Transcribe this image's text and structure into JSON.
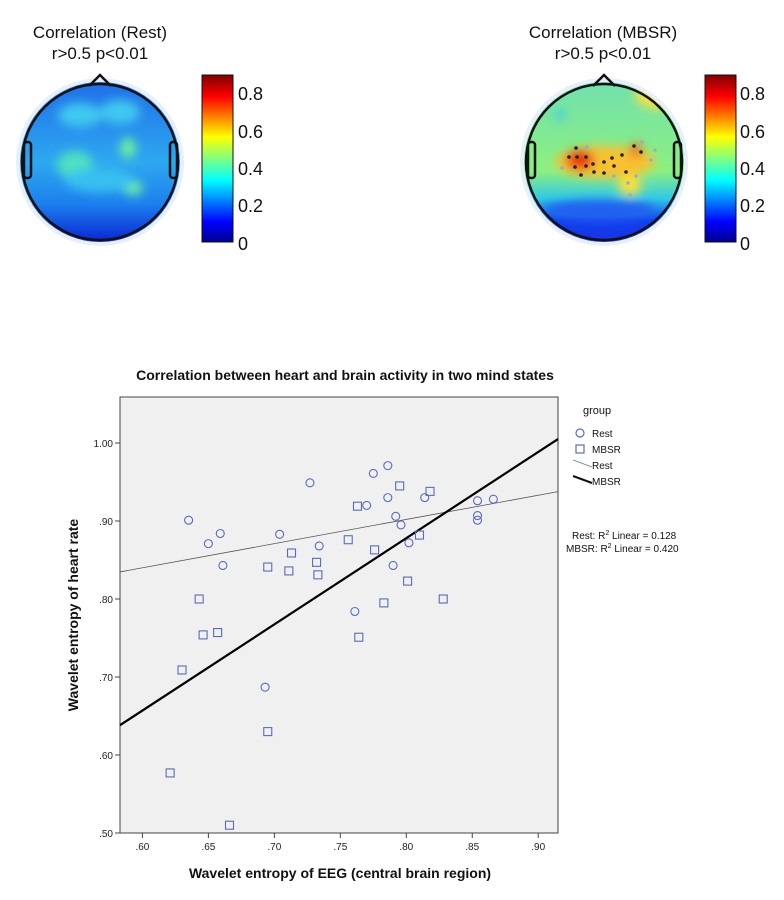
{
  "topomaps": [
    {
      "title": "Correlation (Rest)",
      "subtitle": "r>0.5  p<0.01",
      "colorbar_ticks": [
        "0.8",
        "0.6",
        "0.4",
        "0.2",
        "0"
      ],
      "colorbar_range": [
        0,
        0.9
      ]
    },
    {
      "title": "Correlation (MBSR)",
      "subtitle": "r>0.5  p<0.01",
      "colorbar_ticks": [
        "0.8",
        "0.6",
        "0.4",
        "0.2",
        "0"
      ],
      "colorbar_range": [
        0,
        0.9
      ]
    }
  ],
  "chart_data": {
    "type": "scatter",
    "title": "Correlation between heart and brain activity in two mind states",
    "xlabel": "Wavelet entropy of EEG (central brain region)",
    "ylabel": "Wavelet entropy of heart rate",
    "xlim": [
      0.583,
      0.915
    ],
    "ylim": [
      0.5,
      1.059
    ],
    "xticks": [
      ".60",
      ".65",
      ".70",
      ".75",
      ".80",
      ".85",
      ".90"
    ],
    "xtick_values": [
      0.6,
      0.65,
      0.7,
      0.75,
      0.8,
      0.85,
      0.9
    ],
    "yticks": [
      ".50",
      ".60",
      ".70",
      ".80",
      ".90",
      "1.00"
    ],
    "ytick_values": [
      0.5,
      0.6,
      0.7,
      0.8,
      0.9,
      1.0
    ],
    "grid": false,
    "legend_title": "group",
    "legend_position": "right",
    "series": [
      {
        "name": "Rest",
        "marker": "circle",
        "color": "#5b6bb8",
        "points": [
          [
            0.635,
            0.901
          ],
          [
            0.65,
            0.871
          ],
          [
            0.659,
            0.884
          ],
          [
            0.661,
            0.843
          ],
          [
            0.704,
            0.883
          ],
          [
            0.727,
            0.949
          ],
          [
            0.734,
            0.868
          ],
          [
            0.775,
            0.961
          ],
          [
            0.786,
            0.971
          ],
          [
            0.77,
            0.92
          ],
          [
            0.786,
            0.93
          ],
          [
            0.792,
            0.906
          ],
          [
            0.796,
            0.895
          ],
          [
            0.802,
            0.872
          ],
          [
            0.79,
            0.843
          ],
          [
            0.814,
            0.93
          ],
          [
            0.854,
            0.926
          ],
          [
            0.866,
            0.928
          ],
          [
            0.854,
            0.907
          ],
          [
            0.854,
            0.901
          ],
          [
            0.761,
            0.784
          ],
          [
            0.693,
            0.687
          ]
        ]
      },
      {
        "name": "MBSR",
        "marker": "square",
        "color": "#5b6bb8",
        "points": [
          [
            0.795,
            0.945
          ],
          [
            0.818,
            0.938
          ],
          [
            0.763,
            0.919
          ],
          [
            0.756,
            0.876
          ],
          [
            0.81,
            0.882
          ],
          [
            0.776,
            0.863
          ],
          [
            0.713,
            0.859
          ],
          [
            0.732,
            0.847
          ],
          [
            0.695,
            0.841
          ],
          [
            0.711,
            0.836
          ],
          [
            0.733,
            0.831
          ],
          [
            0.801,
            0.823
          ],
          [
            0.643,
            0.8
          ],
          [
            0.828,
            0.8
          ],
          [
            0.783,
            0.795
          ],
          [
            0.646,
            0.754
          ],
          [
            0.657,
            0.757
          ],
          [
            0.63,
            0.709
          ],
          [
            0.764,
            0.751
          ],
          [
            0.695,
            0.63
          ],
          [
            0.621,
            0.577
          ],
          [
            0.666,
            0.51
          ]
        ]
      }
    ],
    "fit_lines": [
      {
        "name": "Rest",
        "intercept": 0.654,
        "slope": 0.31,
        "r2_label": "Rest: R",
        "r2_suffix": " Linear = 0.128"
      },
      {
        "name": "MBSR",
        "intercept": -0.006,
        "slope": 1.105,
        "r2_label": "MBSR: R",
        "r2_suffix": " Linear = 0.420"
      }
    ],
    "r2_sup": "2"
  }
}
